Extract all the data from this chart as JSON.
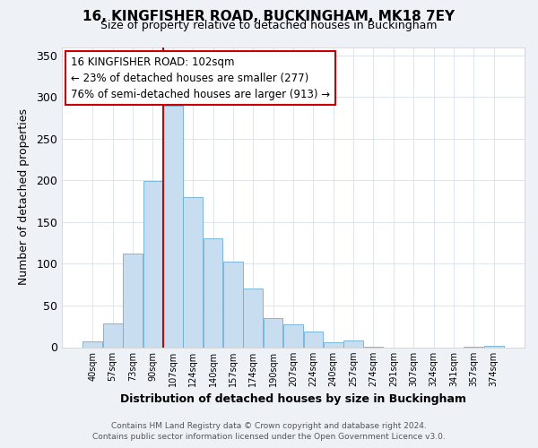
{
  "title": "16, KINGFISHER ROAD, BUCKINGHAM, MK18 7EY",
  "subtitle": "Size of property relative to detached houses in Buckingham",
  "xlabel": "Distribution of detached houses by size in Buckingham",
  "ylabel": "Number of detached properties",
  "bar_labels": [
    "40sqm",
    "57sqm",
    "73sqm",
    "90sqm",
    "107sqm",
    "124sqm",
    "140sqm",
    "157sqm",
    "174sqm",
    "190sqm",
    "207sqm",
    "224sqm",
    "240sqm",
    "257sqm",
    "274sqm",
    "291sqm",
    "307sqm",
    "324sqm",
    "341sqm",
    "357sqm",
    "374sqm"
  ],
  "bar_values": [
    7,
    29,
    112,
    199,
    290,
    180,
    131,
    103,
    70,
    35,
    27,
    19,
    6,
    8,
    1,
    0,
    0,
    0,
    0,
    1,
    2
  ],
  "bar_color": "#c8ddf0",
  "bar_edge_color": "#6aafd6",
  "property_line_index": 4,
  "property_line_color": "#cc0000",
  "annotation_line1": "16 KINGFISHER ROAD: 102sqm",
  "annotation_line2": "← 23% of detached houses are smaller (277)",
  "annotation_line3": "76% of semi-detached houses are larger (913) →",
  "annotation_box_color": "#ffffff",
  "annotation_box_edge": "#cc0000",
  "ylim": [
    0,
    360
  ],
  "yticks": [
    0,
    50,
    100,
    150,
    200,
    250,
    300,
    350
  ],
  "footer_line1": "Contains HM Land Registry data © Crown copyright and database right 2024.",
  "footer_line2": "Contains public sector information licensed under the Open Government Licence v3.0.",
  "bg_color": "#eef2f7",
  "plot_bg_color": "#ffffff",
  "grid_color": "#d0dae8"
}
